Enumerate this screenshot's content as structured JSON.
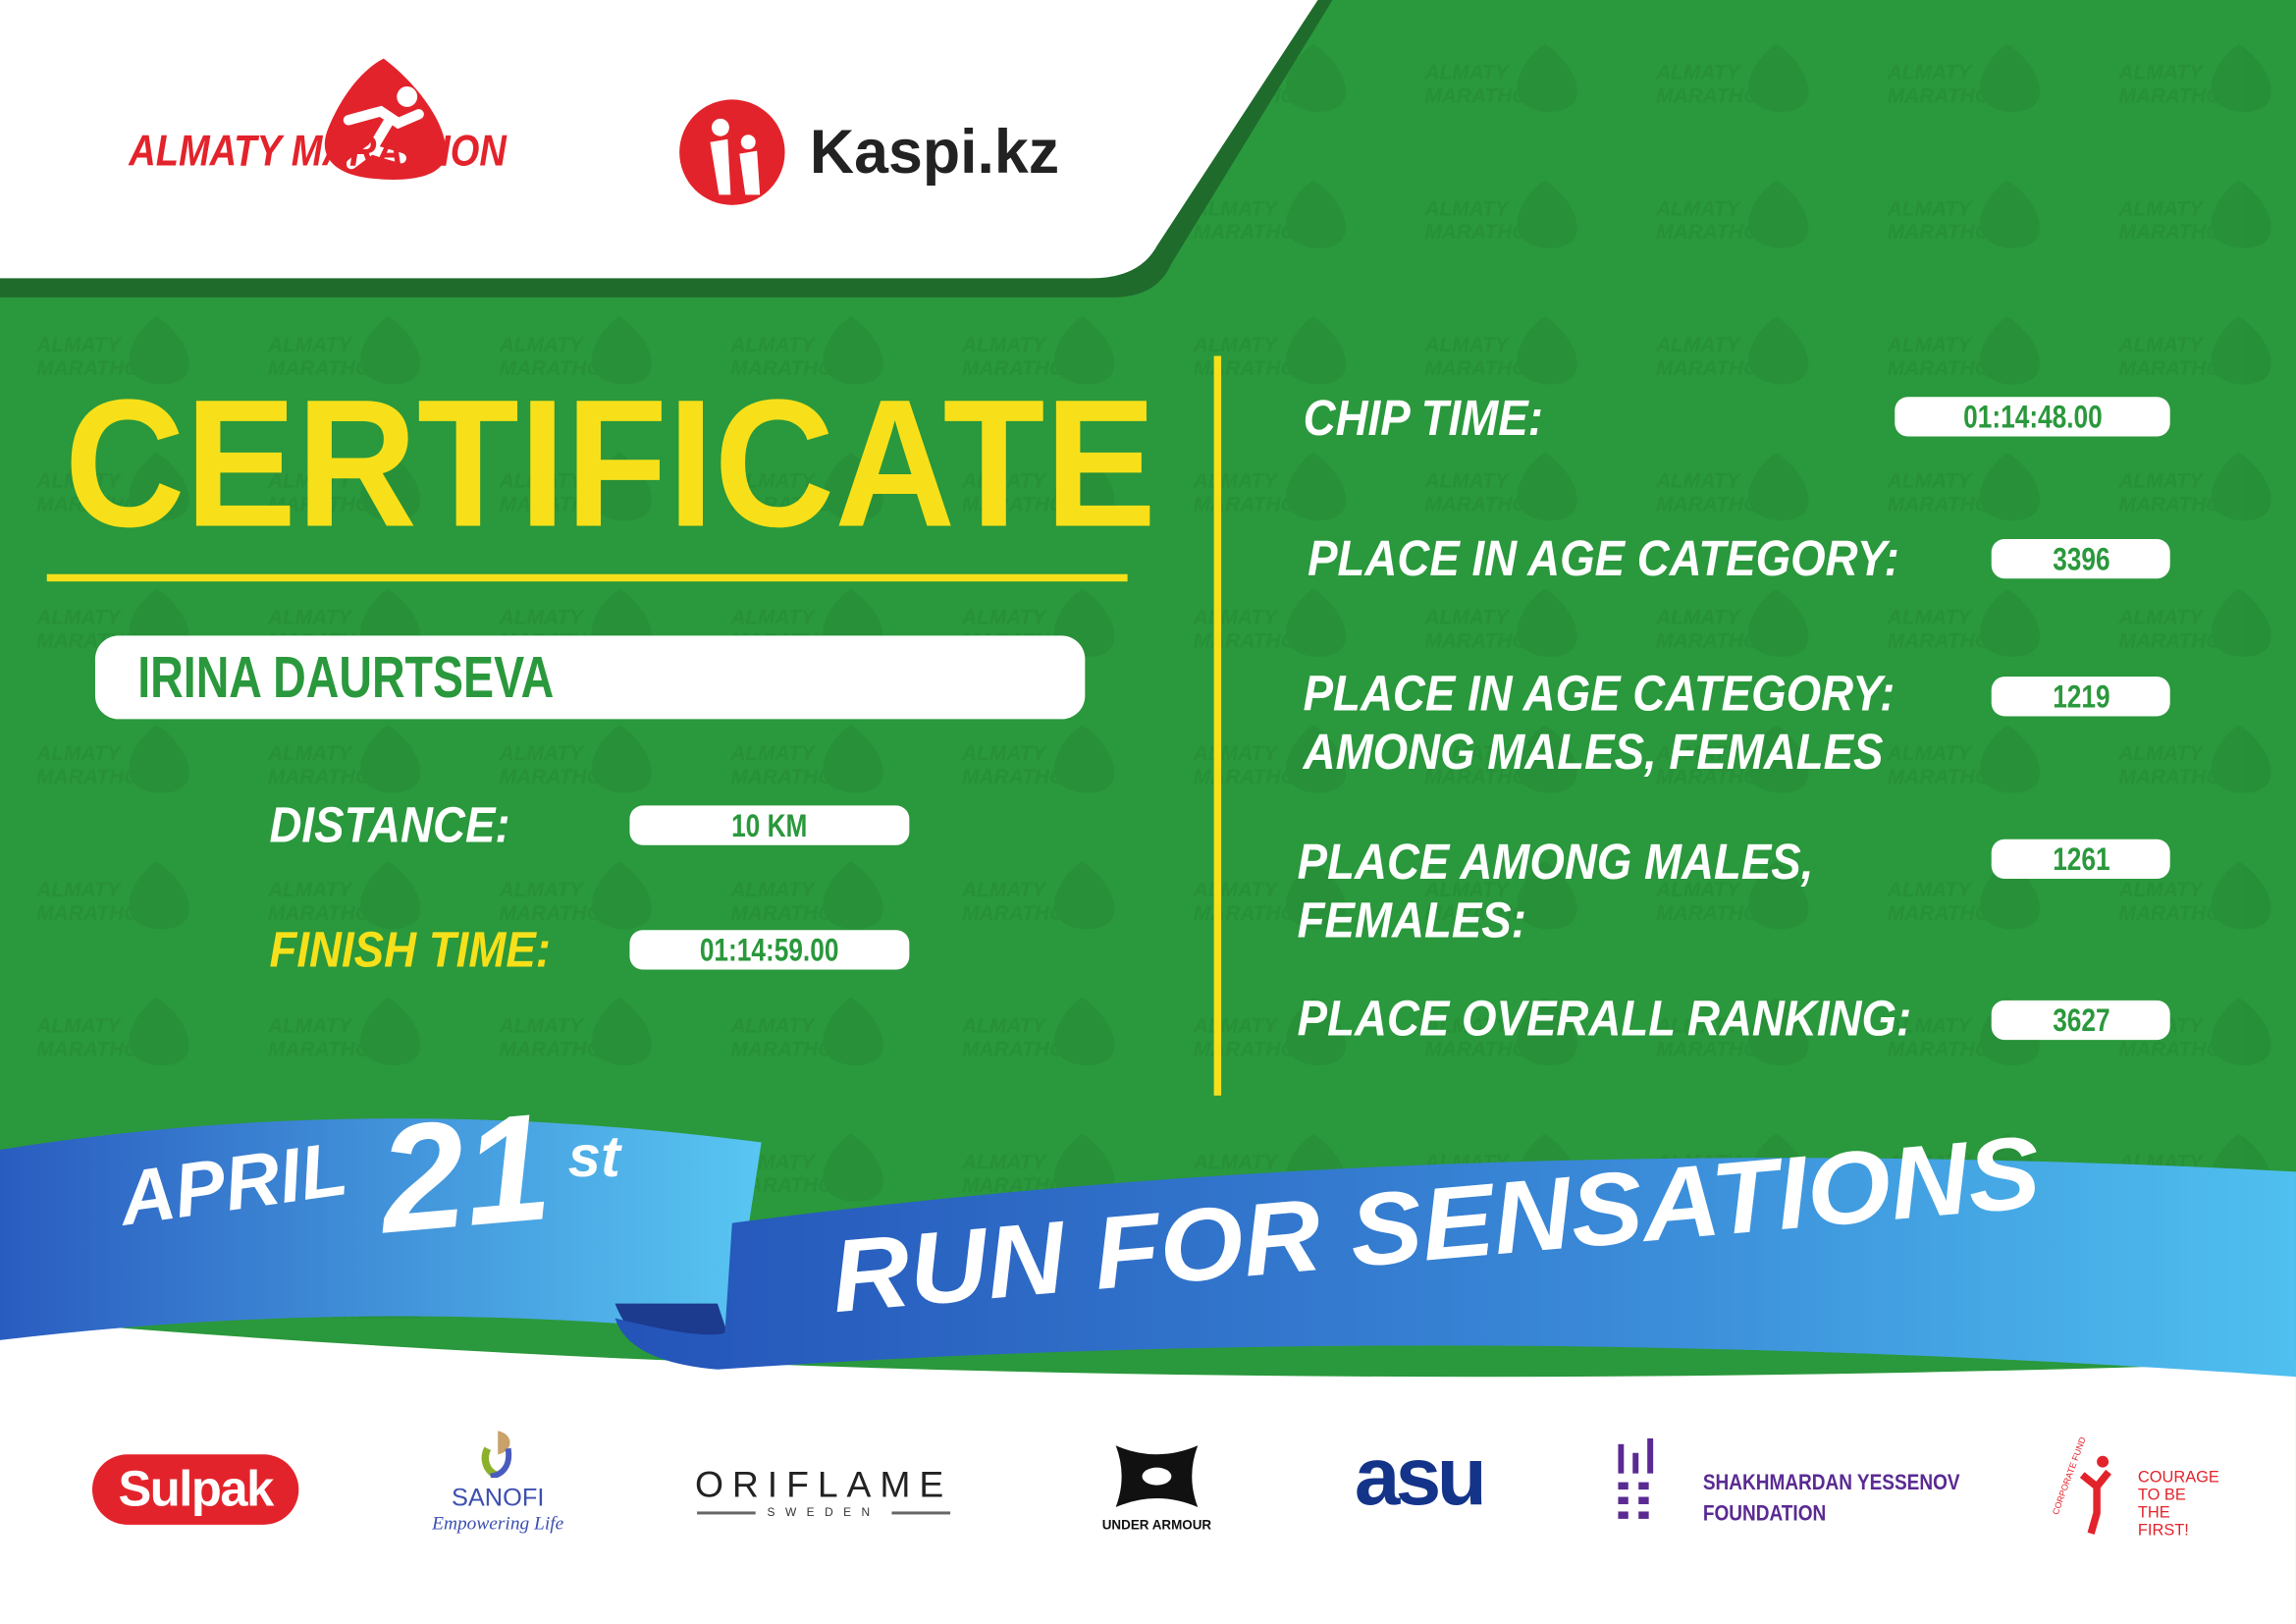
{
  "header": {
    "organizer_logo": "ALMATY MARATHON",
    "sponsor_logo": "Kaspi.kz",
    "watermark_text": "ALMATY MARATHON"
  },
  "certificate": {
    "title": "CERTIFICATE",
    "runner_name": "IRINA DAURTSEVA",
    "distance_label": "DISTANCE:",
    "distance_value": "10 KM",
    "finish_time_label": "FINISH TIME:",
    "finish_time_value": "01:14:59.00"
  },
  "results": [
    {
      "label": "CHIP TIME:",
      "value": "01:14:48.00"
    },
    {
      "label": "PLACE IN AGE CATEGORY:",
      "value": "3396"
    },
    {
      "label": "PLACE IN AGE CATEGORY:",
      "label2": "AMONG MALES, FEMALES",
      "value": "1219"
    },
    {
      "label": "PLACE AMONG MALES,",
      "label2": "FEMALES:",
      "value": "1261"
    },
    {
      "label": "PLACE OVERALL RANKING:",
      "value": "3627"
    }
  ],
  "banner": {
    "month": "APRIL",
    "day": "21",
    "suffix": "st",
    "slogan": "RUN FOR SENSATIONS"
  },
  "sponsors": {
    "sulpak": "Sulpak",
    "sanofi": "SANOFI",
    "sanofi_tagline": "Empowering Life",
    "oriflame": "ORIFLAME",
    "oriflame_sub": "SWEDEN",
    "under_armour": "UNDER ARMOUR",
    "asu": "asu",
    "yessenov_1": "SHAKHMARDAN YESSENOV",
    "yessenov_2": "FOUNDATION",
    "courage_fund": "CORPORATE FUND",
    "courage_1": "COURAGE",
    "courage_2": "TO BE",
    "courage_3": "THE FIRST!"
  },
  "colors": {
    "green": "#2a983c",
    "yellow": "#f7e01a",
    "red": "#e3232b",
    "blue": "#2a6fc9"
  }
}
